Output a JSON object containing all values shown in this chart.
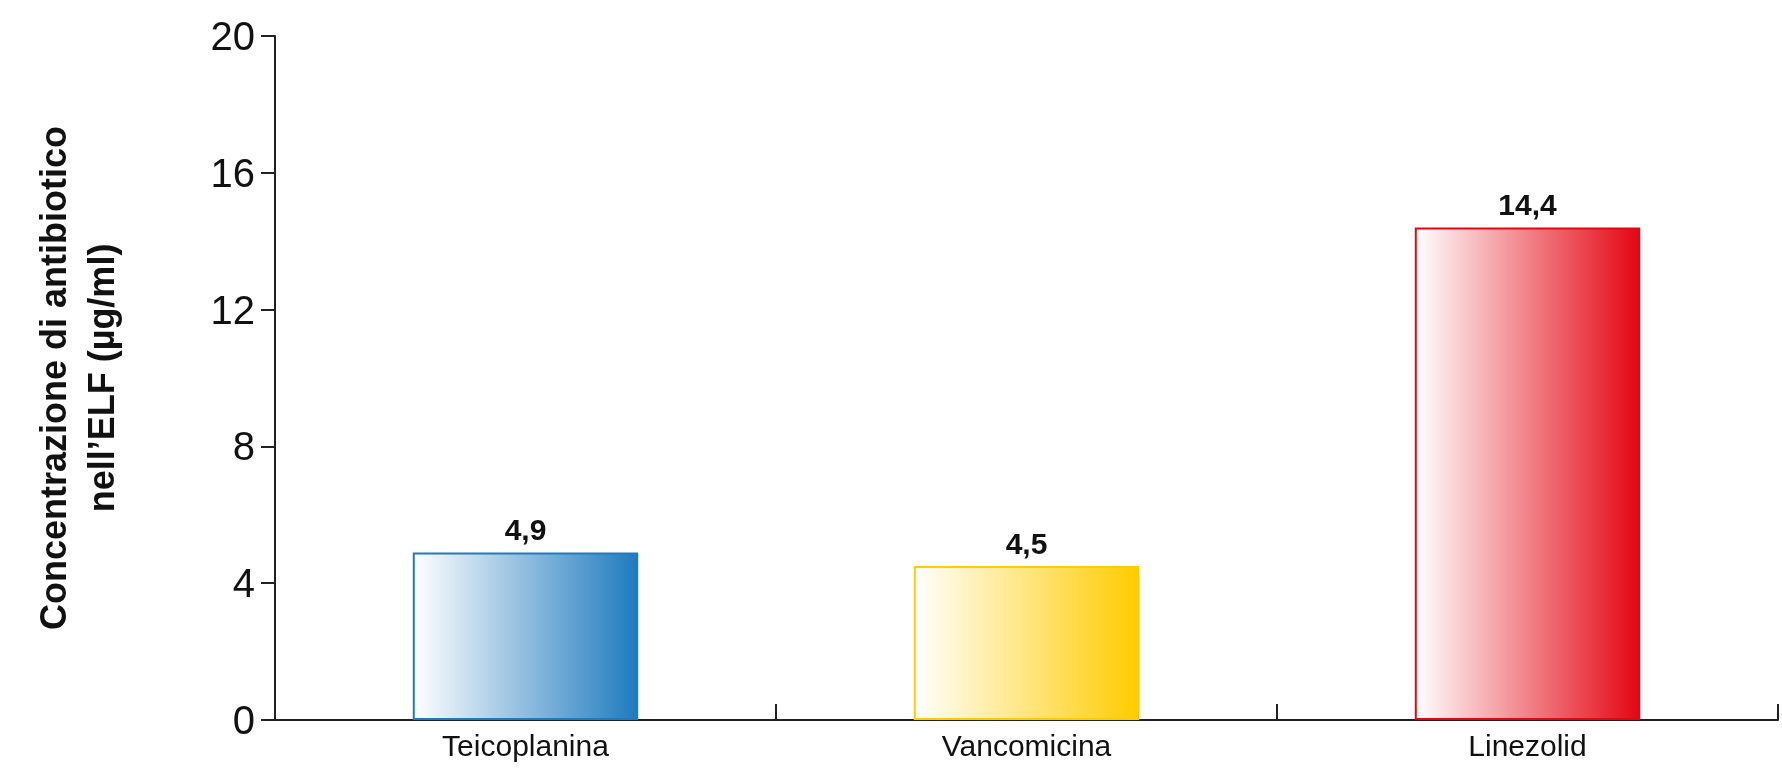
{
  "chart_data": {
    "type": "bar",
    "ylabel": "Concentrazione di antibiotico\nnell’ELF (µg/ml)",
    "categories": [
      "Teicoplanina",
      "Vancomicina",
      "Linezolid"
    ],
    "values": [
      4.9,
      4.5,
      14.4
    ],
    "colors": [
      "#1f7bbf",
      "#ffcc00",
      "#e30613"
    ],
    "value_labels": [
      "4,9",
      "4,5",
      "14,4"
    ],
    "ylim": [
      0,
      20
    ],
    "yticks": [
      0,
      4,
      8,
      12,
      16,
      20
    ],
    "grid": false
  }
}
